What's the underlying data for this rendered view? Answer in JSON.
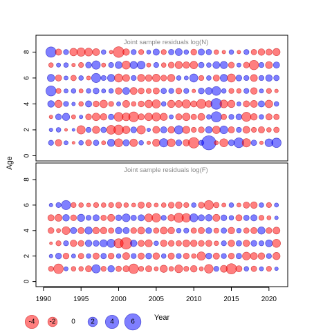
{
  "chart_data": {
    "type": "scatter",
    "encoding": "bubble",
    "xlabel": "Year",
    "ylabel": "Age",
    "x_ticks": [
      1990,
      1995,
      2000,
      2005,
      2010,
      2015,
      2020
    ],
    "y_ticks": [
      0,
      2,
      4,
      6,
      8
    ],
    "xlim": [
      1989,
      2022.5
    ],
    "ylim": [
      -0.4,
      9.3
    ],
    "years": [
      1991,
      1992,
      1993,
      1994,
      1995,
      1996,
      1997,
      1998,
      1999,
      2000,
      2001,
      2002,
      2003,
      2004,
      2005,
      2006,
      2007,
      2008,
      2009,
      2010,
      2011,
      2012,
      2013,
      2014,
      2015,
      2016,
      2017,
      2018,
      2019,
      2020,
      2021
    ],
    "colors": {
      "positive": "#0000ff",
      "negative": "#ff0000",
      "border_positive": "#0000b0",
      "border_negative": "#c00000"
    },
    "legend": {
      "placement": "bottom-left",
      "values": [
        -4,
        -2,
        0,
        2,
        4,
        6
      ],
      "labels": [
        "-4",
        "-2",
        "0",
        "2",
        "4",
        "6"
      ]
    },
    "panels": [
      {
        "title": "Joint sample residuals log(N)",
        "ages": [
          1,
          2,
          3,
          4,
          5,
          6,
          7,
          8
        ],
        "residuals": [
          [
            0.6,
            -1.0,
            0.4,
            -0.2,
            0.5,
            -0.8,
            0.7,
            -0.4,
            1.2,
            -1.5,
            0.9,
            -1.3,
            0.5,
            -0.3,
            -1.2,
            1.6,
            -1.4,
            0.8,
            -1.0,
            -2.5,
            0.6,
            4.5,
            -0.4,
            -1.5,
            0.8,
            2.2,
            -1.6,
            0.7,
            -0.3,
            1.4,
            2.0
          ],
          [
            0.3,
            0.5,
            -0.2,
            0.2,
            -1.6,
            0.6,
            -1.2,
            0.7,
            -1.8,
            -2.1,
            -1.3,
            0.8,
            -1.6,
            0.3,
            -1.1,
            0.9,
            -1.0,
            1.6,
            -1.2,
            -0.6,
            -0.8,
            1.0,
            -1.3,
            1.4,
            -0.9,
            0.6,
            -1.1,
            -0.6,
            -0.9,
            -0.5,
            -0.7
          ],
          [
            -0.3,
            0.8,
            1.2,
            -0.4,
            0.3,
            -0.8,
            -1.3,
            -1.0,
            0.7,
            -1.8,
            -1.4,
            -2.2,
            -0.9,
            -1.3,
            -1.6,
            -1.2,
            0.4,
            -0.9,
            -1.3,
            -0.7,
            -1.1,
            0.5,
            2.4,
            -0.7,
            0.6,
            0.8,
            -1.9,
            -1.0,
            0.5,
            -0.9,
            -0.7
          ],
          [
            1.0,
            -1.2,
            0.6,
            0.3,
            -0.5,
            0.9,
            -0.8,
            -1.3,
            -0.6,
            0.4,
            -1.1,
            -0.5,
            -0.8,
            -1.3,
            -1.6,
            0.5,
            -1.2,
            -1.1,
            -1.6,
            -0.9,
            -1.9,
            -1.0,
            2.6,
            -1.4,
            -1.2,
            0.4,
            -0.9,
            -1.1,
            0.9,
            -1.3,
            0.5
          ],
          [
            2.3,
            -0.6,
            0.4,
            0.5,
            -0.4,
            0.5,
            0.8,
            0.4,
            0.5,
            -1.0,
            1.1,
            -1.1,
            -0.8,
            -0.6,
            -0.9,
            0.7,
            0.6,
            -0.8,
            0.6,
            -0.3,
            0.8,
            1.1,
            1.8,
            0.5,
            -0.6,
            -0.5,
            0.6,
            -1.0,
            0.4,
            -0.6,
            -0.3
          ],
          [
            1.2,
            -0.9,
            0.4,
            -0.7,
            0.5,
            -0.4,
            1.9,
            0.6,
            1.2,
            -1.5,
            -1.1,
            0.6,
            -1.2,
            -1.0,
            -1.3,
            -0.8,
            -1.2,
            0.5,
            0.4,
            1.5,
            -0.6,
            0.5,
            -0.9,
            1.2,
            -1.5,
            0.8,
            0.6,
            -1.1,
            0.6,
            1.0,
            0.7
          ],
          [
            -0.5,
            0.4,
            0.5,
            -0.3,
            -0.6,
            0.8,
            1.6,
            -0.4,
            0.6,
            1.1,
            -1.5,
            1.2,
            1.4,
            -0.4,
            0.6,
            -0.5,
            -0.8,
            -1.2,
            -1.0,
            -1.3,
            0.7,
            0.5,
            1.1,
            1.2,
            -0.8,
            0.4,
            -0.8,
            -2.0,
            0.6,
            -1.1,
            0.9
          ],
          [
            2.4,
            -0.9,
            0.6,
            -1.3,
            -1.6,
            -1.4,
            -1.1,
            0.5,
            -0.3,
            -2.6,
            -1.0,
            0.6,
            -0.6,
            0.4,
            0.9,
            -0.6,
            0.7,
            1.1,
            0.5,
            -0.8,
            0.9,
            0.7,
            -0.5,
            -0.3,
            0.5,
            -0.3,
            0.6,
            -0.7,
            -1.0,
            -0.9,
            -1.2
          ]
        ]
      },
      {
        "title": "Joint sample residuals log(F)",
        "ages": [
          1,
          2,
          3,
          4,
          5,
          6
        ],
        "residuals": [
          [
            -0.6,
            -2.1,
            0.4,
            -0.5,
            -0.5,
            -0.9,
            1.6,
            -0.6,
            1.0,
            -0.7,
            -0.9,
            -2.1,
            -0.6,
            -0.9,
            -0.4,
            -1.2,
            -0.5,
            -1.4,
            -0.6,
            -1.0,
            -0.4,
            -1.7,
            0.6,
            -1.1,
            -2.4,
            -0.9,
            0.5,
            -0.7,
            0.4,
            -0.6,
            0.3
          ],
          [
            0.3,
            0.8,
            -0.8,
            0.4,
            -0.7,
            0.5,
            -0.9,
            0.7,
            -0.8,
            0.5,
            -1.1,
            0.6,
            -0.9,
            0.8,
            -1.0,
            0.5,
            -0.9,
            0.6,
            -0.8,
            -0.5,
            -1.6,
            0.8,
            -0.9,
            0.6,
            -0.8,
            0.7,
            -1.4,
            -1.1,
            -1.0,
            0.6,
            -1.2
          ],
          [
            -0.2,
            -0.6,
            0.6,
            -1.0,
            -0.8,
            1.0,
            0.8,
            1.2,
            1.5,
            -1.9,
            -3.0,
            1.0,
            -0.9,
            -1.2,
            0.5,
            -1.0,
            -0.8,
            -0.7,
            -1.1,
            -1.0,
            -0.8,
            -0.9,
            -0.5,
            0.6,
            -1.0,
            0.7,
            -1.0,
            0.8,
            0.6,
            1.1,
            -1.5
          ],
          [
            -0.8,
            -0.4,
            -1.4,
            0.9,
            -0.9,
            1.2,
            -1.0,
            -1.0,
            -0.7,
            1.0,
            0.9,
            -0.8,
            -1.1,
            0.8,
            -0.7,
            -1.1,
            -1.0,
            0.5,
            0.6,
            -0.7,
            -0.9,
            0.8,
            -0.6,
            0.7,
            -1.0,
            0.5,
            -0.7,
            -0.9,
            1.2,
            -0.8,
            -1.1
          ],
          [
            -0.9,
            -1.1,
            1.0,
            -0.8,
            1.2,
            0.6,
            0.9,
            -0.7,
            -1.1,
            0.8,
            1.4,
            0.7,
            0.9,
            -1.4,
            -1.7,
            0.6,
            -1.0,
            -2.0,
            -1.7,
            1.5,
            0.9,
            1.0,
            -1.1,
            0.8,
            0.5,
            -0.9,
            0.7,
            0.9,
            -0.6,
            -0.4,
            0.3
          ],
          [
            0.3,
            0.6,
            1.9,
            -0.6,
            -0.5,
            -0.4,
            -0.6,
            -0.5,
            -0.6,
            -0.8,
            -0.5,
            -0.4,
            -0.9,
            -0.6,
            -0.4,
            -0.5,
            -0.8,
            -1.0,
            -0.6,
            0.5,
            -0.8,
            -1.9,
            -0.7,
            -0.4,
            0.5,
            -0.4,
            -0.9,
            -1.0,
            0.5,
            -0.6,
            0.4
          ]
        ]
      }
    ]
  }
}
